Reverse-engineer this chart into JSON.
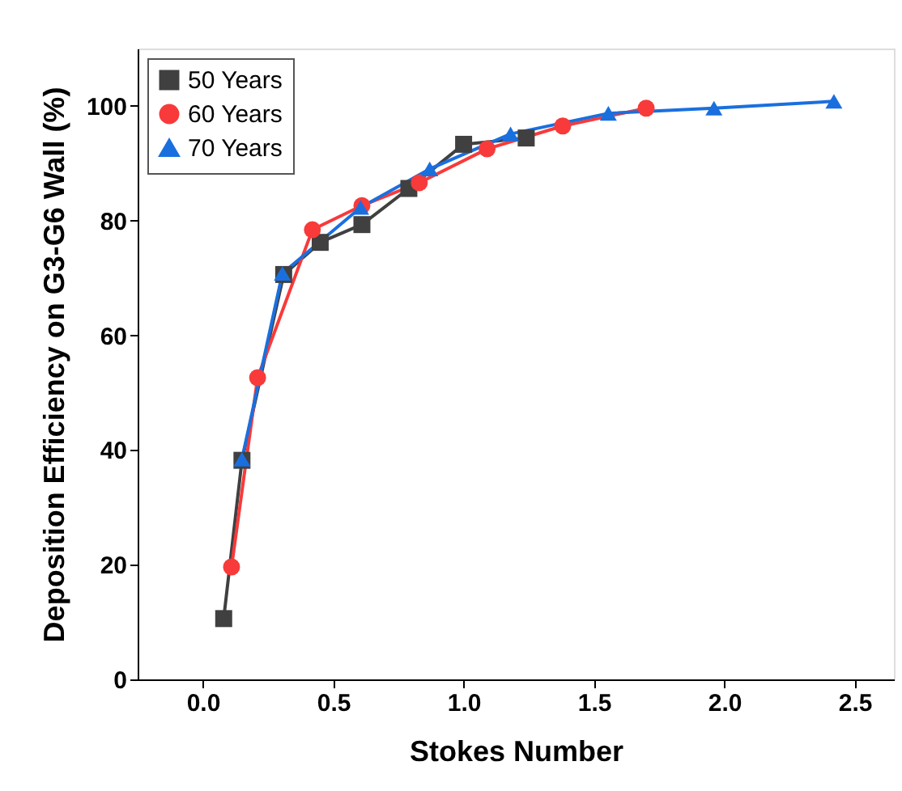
{
  "chart_data": {
    "type": "line",
    "xlabel": "Stokes Number",
    "ylabel": "Deposition Efficiency on G3-G6 Wall (%)",
    "xlim": [
      -0.25,
      2.65
    ],
    "xticks": [
      {
        "value": 0,
        "label": "0.0"
      },
      0.5,
      {
        "value": 1,
        "label": "1.0"
      },
      1.5,
      {
        "value": 2,
        "label": "2.0"
      },
      2.5
    ],
    "ylim": [
      0,
      110
    ],
    "yticks": [
      0,
      20,
      40,
      60,
      80,
      100
    ],
    "grid": false,
    "legend": "top left",
    "line_style": "solid",
    "series": [
      {
        "name": "50 Years",
        "color": "#404040",
        "marker": "square",
        "x": [
          0.08,
          0.15,
          0.31,
          0.45,
          0.61,
          0.79,
          1.0,
          1.24
        ],
        "values": [
          10.6,
          38.2,
          70.6,
          76.2,
          79.3,
          85.6,
          93.3,
          94.4
        ]
      },
      {
        "name": "60 Years",
        "color": "#f83a3a",
        "marker": "circle",
        "x": [
          0.11,
          0.21,
          0.42,
          0.61,
          0.83,
          1.09,
          1.38,
          1.7
        ],
        "values": [
          19.6,
          52.6,
          78.4,
          82.6,
          86.6,
          92.5,
          96.5,
          99.6
        ]
      },
      {
        "name": "70 Years",
        "color": "#1a6fdf",
        "marker": "triangle",
        "x": [
          0.15,
          0.305,
          0.605,
          0.87,
          1.18,
          1.555,
          1.96,
          2.42
        ],
        "values": [
          38.4,
          70.8,
          82.3,
          89.0,
          95.1,
          98.7,
          99.6,
          100.8
        ]
      }
    ]
  }
}
